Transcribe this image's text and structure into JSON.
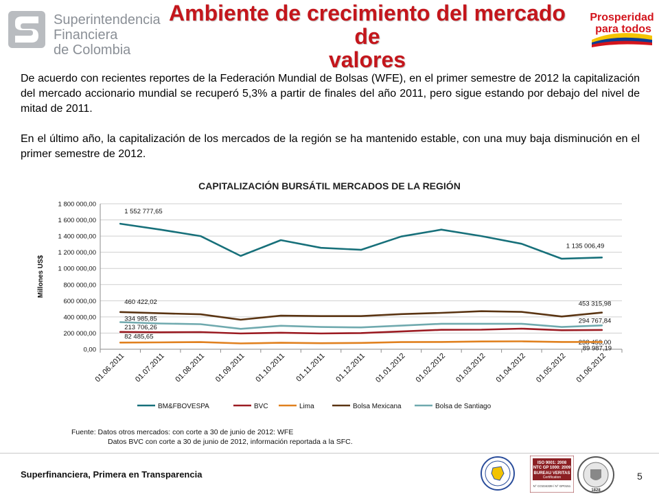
{
  "header": {
    "org_name_lines": [
      "Superintendencia",
      "Financiera",
      "de Colombia"
    ],
    "title_lines": [
      "Ambiente de crecimiento del mercado de",
      "valores"
    ],
    "right_logo_lines": [
      "Prosperidad",
      "para todos"
    ]
  },
  "body": {
    "paragraph1": "De acuerdo con recientes reportes de la Federación Mundial de Bolsas (WFE), en el primer semestre de 2012 la capitalización del mercado accionario mundial se recuperó 5,3% a partir de finales del año 2011, pero sigue estando por debajo del nivel de mitad de 2011.",
    "paragraph2": "En el último año, la capitalización de los mercados de la región se ha mantenido estable, con una muy baja disminución en el primer semestre de 2012."
  },
  "chart_data": {
    "type": "line",
    "title": "CAPITALIZACIÓN BURSÁTIL MERCADOS DE LA REGIÓN",
    "ylabel": "Millones US$",
    "xlabel": "",
    "ylim": [
      0,
      1800000
    ],
    "ytick_labels": [
      "0,00",
      "200 000,00",
      "400 000,00",
      "600 000,00",
      "800 000,00",
      "1 000 000,00",
      "1 200 000,00",
      "1 400 000,00",
      "1 600 000,00",
      "1 800 000,00"
    ],
    "categories": [
      "01.06.2011",
      "01.07.2011",
      "01.08.2011",
      "01.09.2011",
      "01.10.2011",
      "01.11.2011",
      "01.12.2011",
      "01.01.2012",
      "01.02.2012",
      "01.03.2012",
      "01.04.2012",
      "01.05.2012",
      "01.06.2012"
    ],
    "grid": true,
    "legend_position": "bottom",
    "series": [
      {
        "name": "BM&FBOVESPA",
        "color": "#17707a",
        "values": [
          1552777.65,
          1480000,
          1400000,
          1155000,
          1350000,
          1255000,
          1230000,
          1395000,
          1480000,
          1400000,
          1305000,
          1120000,
          1135006.49
        ],
        "first_label": "1 552 777,65",
        "last_label": "1 135 006,49"
      },
      {
        "name": "BVC",
        "color": "#9b1b22",
        "values": [
          213706.26,
          210000,
          212000,
          195000,
          205000,
          195000,
          200000,
          220000,
          240000,
          242000,
          255000,
          235000,
          238453.0
        ],
        "first_label": "213 706,26",
        "last_label": "238 453,00"
      },
      {
        "name": "Lima",
        "color": "#e0801e",
        "values": [
          82485.65,
          85000,
          88000,
          72000,
          80000,
          75000,
          78000,
          88000,
          90000,
          96000,
          98000,
          90000,
          89987.19
        ],
        "first_label": "82 485,65",
        "last_label": "89 987,19"
      },
      {
        "name": "Bolsa Mexicana",
        "color": "#5a3412",
        "values": [
          460422.02,
          445000,
          432000,
          365000,
          415000,
          410000,
          410000,
          435000,
          450000,
          470000,
          462000,
          405000,
          453315.98
        ],
        "first_label": "460 422,02",
        "last_label": "453 315,98"
      },
      {
        "name": "Bolsa de Santiago",
        "color": "#6fa9ae",
        "values": [
          334985.85,
          318000,
          310000,
          252000,
          290000,
          275000,
          270000,
          292000,
          315000,
          315000,
          315000,
          275000,
          294767.84
        ],
        "first_label": "334 985,85",
        "last_label": "294 767,84"
      }
    ]
  },
  "footnote": {
    "line1": "Fuente:  Datos otros mercados: con corte a 30 de junio de 2012: WFE",
    "line2": "Datos BVC con corte a 30 de junio de 2012, información reportada a la SFC."
  },
  "footer": {
    "tagline": "Superfinanciera, Primera en Transparencia",
    "page_number": "5",
    "iso_badge_lines": [
      "ISO 9001: 2008",
      "NTC GP 1000: 2009",
      "BUREAU VERITAS",
      "Certification",
      "N° CO234339 / N° GP0151"
    ],
    "bv_seal_text": "1828"
  }
}
